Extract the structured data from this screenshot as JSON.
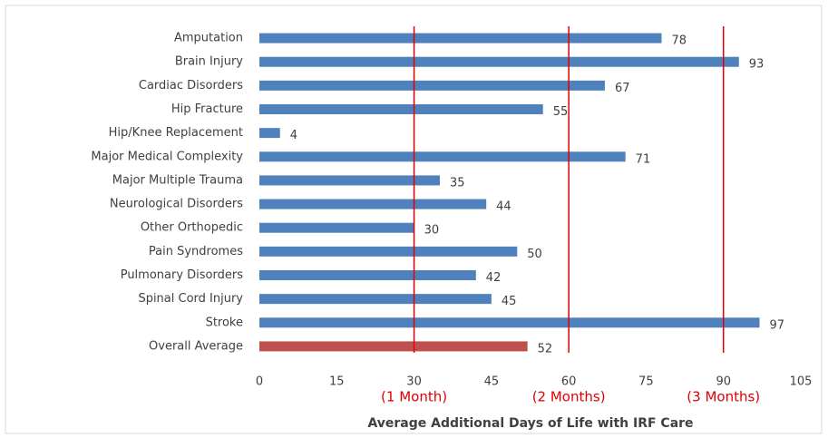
{
  "chart_data": {
    "type": "barh",
    "x_label": "Average Additional Days of Life with IRF Care",
    "categories": [
      "Amputation",
      "Brain Injury",
      "Cardiac Disorders",
      "Hip Fracture",
      "Hip/Knee Replacement",
      "Major Medical Complexity",
      "Major Multiple Trauma",
      "Neurological Disorders",
      "Other Orthopedic",
      "Pain Syndromes",
      "Pulmonary Disorders",
      "Spinal Cord Injury",
      "Stroke",
      "Overall Average"
    ],
    "values": [
      78,
      93,
      67,
      55,
      4,
      71,
      35,
      44,
      30,
      50,
      42,
      45,
      97,
      52
    ],
    "colors": [
      "#4f81bd",
      "#4f81bd",
      "#4f81bd",
      "#4f81bd",
      "#4f81bd",
      "#4f81bd",
      "#4f81bd",
      "#4f81bd",
      "#4f81bd",
      "#4f81bd",
      "#4f81bd",
      "#4f81bd",
      "#4f81bd",
      "#c0504d"
    ],
    "xlim": [
      0,
      105
    ],
    "xticks": [
      0,
      15,
      30,
      45,
      60,
      75,
      90,
      105
    ],
    "grid": false,
    "reference_lines": [
      {
        "value": 30,
        "label": "(1 Month)"
      },
      {
        "value": 60,
        "label": "(2 Months)"
      },
      {
        "value": 90,
        "label": "(3 Months)"
      }
    ],
    "reference_color": "#e00000"
  }
}
